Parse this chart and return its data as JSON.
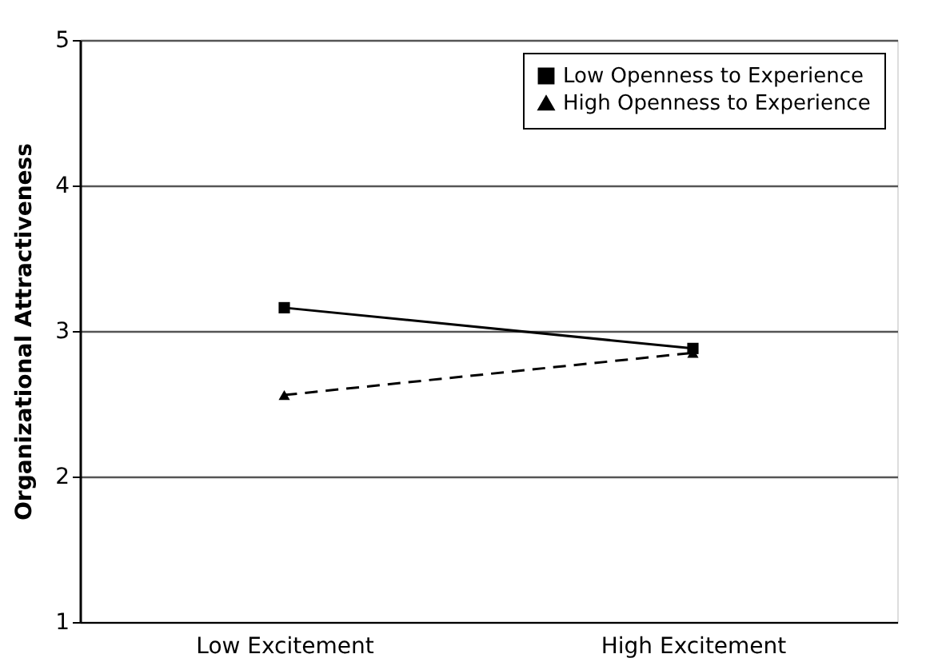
{
  "chart_data": {
    "type": "line",
    "ylabel": "Organizational Attractiveness",
    "categories": [
      "Low Excitement",
      "High Excitement"
    ],
    "series": [
      {
        "name": "Low Openness to Experience",
        "color": "#000000",
        "values": [
          3.16,
          2.88
        ],
        "marker": "square",
        "line_style": "solid"
      },
      {
        "name": "High Openness to Experience",
        "color": "#000000",
        "values": [
          2.56,
          2.85
        ],
        "marker": "triangle",
        "line_style": "dashed"
      }
    ],
    "ylim": [
      1,
      5
    ],
    "yticks": [
      1,
      2,
      3,
      4,
      5
    ],
    "grid": "y",
    "legend": "top right"
  }
}
